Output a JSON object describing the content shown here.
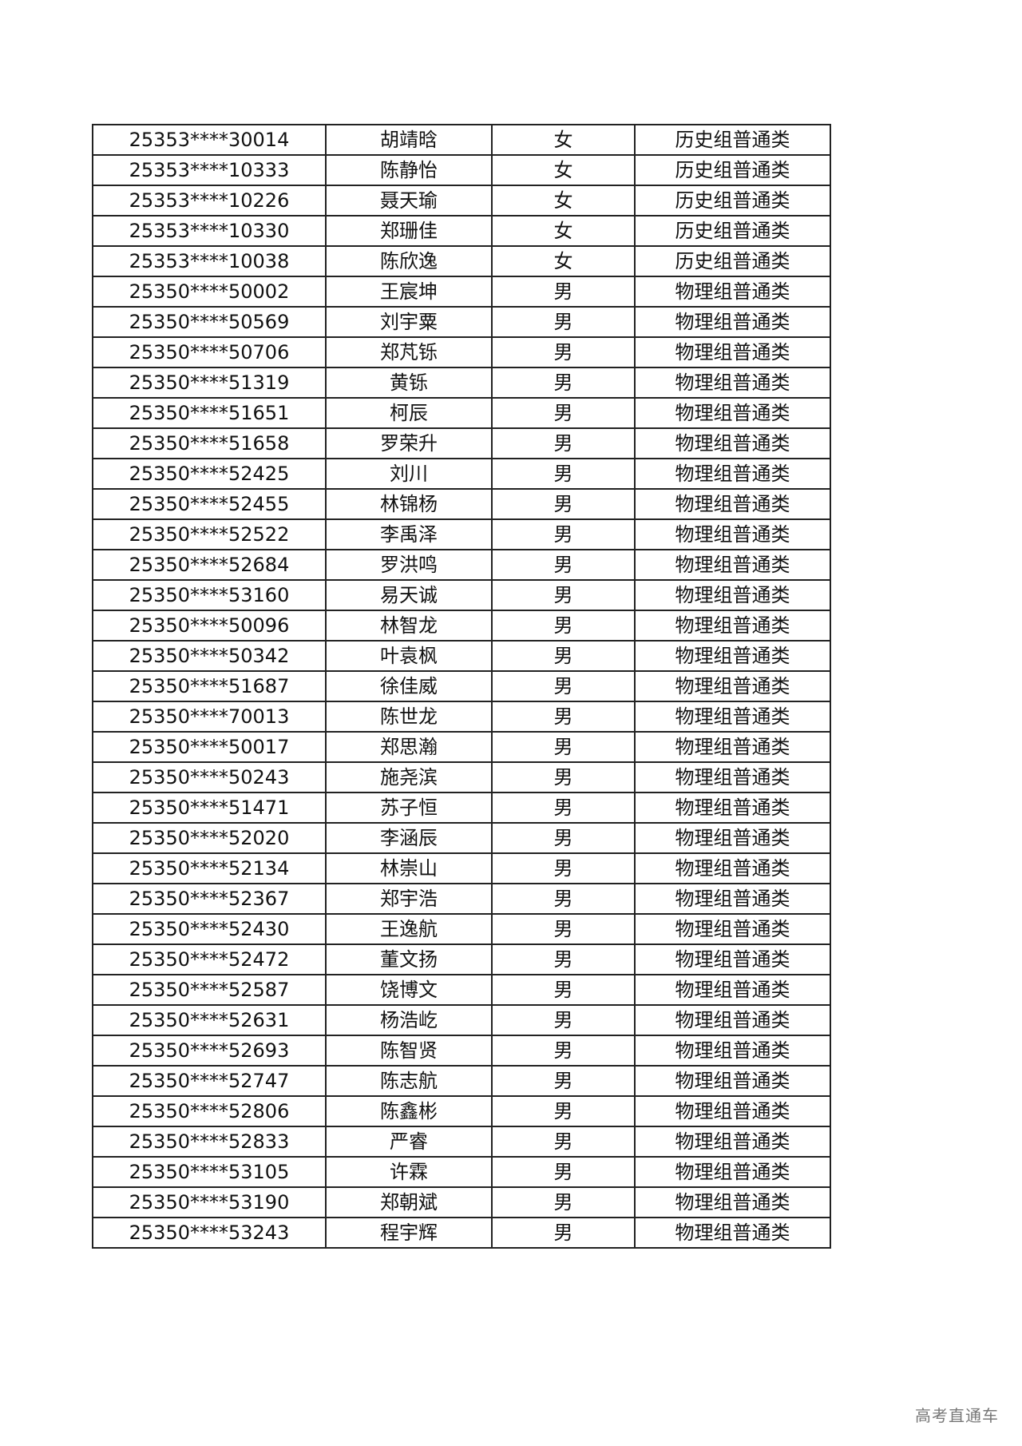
{
  "rows": [
    [
      "25353****30014",
      "胡靖晗",
      "女",
      "历史组普通类"
    ],
    [
      "25353****10333",
      "陈静怡",
      "女",
      "历史组普通类"
    ],
    [
      "25353****10226",
      "聂天瑜",
      "女",
      "历史组普通类"
    ],
    [
      "25353****10330",
      "郑珊佳",
      "女",
      "历史组普通类"
    ],
    [
      "25353****10038",
      "陈欣逸",
      "女",
      "历史组普通类"
    ],
    [
      "25350****50002",
      "王宸坤",
      "男",
      "物理组普通类"
    ],
    [
      "25350****50569",
      "刘宇粟",
      "男",
      "物理组普通类"
    ],
    [
      "25350****50706",
      "郑芃铄",
      "男",
      "物理组普通类"
    ],
    [
      "25350****51319",
      "黄铄",
      "男",
      "物理组普通类"
    ],
    [
      "25350****51651",
      "柯辰",
      "男",
      "物理组普通类"
    ],
    [
      "25350****51658",
      "罗荣升",
      "男",
      "物理组普通类"
    ],
    [
      "25350****52425",
      "刘川",
      "男",
      "物理组普通类"
    ],
    [
      "25350****52455",
      "林锦杨",
      "男",
      "物理组普通类"
    ],
    [
      "25350****52522",
      "李禹泽",
      "男",
      "物理组普通类"
    ],
    [
      "25350****52684",
      "罗洪鸣",
      "男",
      "物理组普通类"
    ],
    [
      "25350****53160",
      "易天诚",
      "男",
      "物理组普通类"
    ],
    [
      "25350****50096",
      "林智龙",
      "男",
      "物理组普通类"
    ],
    [
      "25350****50342",
      "叶袁枫",
      "男",
      "物理组普通类"
    ],
    [
      "25350****51687",
      "徐佳威",
      "男",
      "物理组普通类"
    ],
    [
      "25350****70013",
      "陈世龙",
      "男",
      "物理组普通类"
    ],
    [
      "25350****50017",
      "郑思瀚",
      "男",
      "物理组普通类"
    ],
    [
      "25350****50243",
      "施尧滨",
      "男",
      "物理组普通类"
    ],
    [
      "25350****51471",
      "苏子恒",
      "男",
      "物理组普通类"
    ],
    [
      "25350****52020",
      "李涵辰",
      "男",
      "物理组普通类"
    ],
    [
      "25350****52134",
      "林崇山",
      "男",
      "物理组普通类"
    ],
    [
      "25350****52367",
      "郑宇浩",
      "男",
      "物理组普通类"
    ],
    [
      "25350****52430",
      "王逸航",
      "男",
      "物理组普通类"
    ],
    [
      "25350****52472",
      "董文扬",
      "男",
      "物理组普通类"
    ],
    [
      "25350****52587",
      "饶博文",
      "男",
      "物理组普通类"
    ],
    [
      "25350****52631",
      "杨浩屹",
      "男",
      "物理组普通类"
    ],
    [
      "25350****52693",
      "陈智贤",
      "男",
      "物理组普通类"
    ],
    [
      "25350****52747",
      "陈志航",
      "男",
      "物理组普通类"
    ],
    [
      "25350****52806",
      "陈鑫彬",
      "男",
      "物理组普通类"
    ],
    [
      "25350****52833",
      "严睿",
      "男",
      "物理组普通类"
    ],
    [
      "25350****53105",
      "许霖",
      "男",
      "物理组普通类"
    ],
    [
      "25350****53190",
      "郑朝斌",
      "男",
      "物理组普通类"
    ],
    [
      "25350****53243",
      "程宇辉",
      "男",
      "物理组普通类"
    ]
  ],
  "watermark": "高考直通车"
}
